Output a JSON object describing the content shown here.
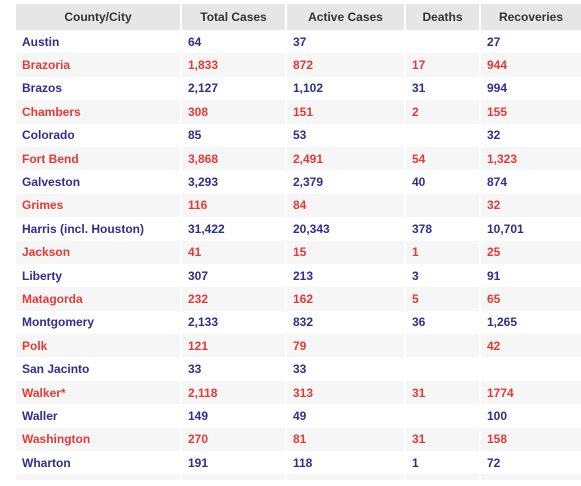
{
  "table": {
    "headers": [
      "County/City",
      "Total Cases",
      "Active Cases",
      "Deaths",
      "Recoveries"
    ],
    "rows": [
      [
        "Austin",
        "64",
        "37",
        "",
        "27"
      ],
      [
        "Brazoria",
        "1,833",
        "872",
        "17",
        "944"
      ],
      [
        "Brazos",
        "2,127",
        "1,102",
        "31",
        "994"
      ],
      [
        "Chambers",
        "308",
        "151",
        "2",
        "155"
      ],
      [
        "Colorado",
        "85",
        "53",
        "",
        "32"
      ],
      [
        "Fort Bend",
        "3,868",
        "2,491",
        "54",
        "1,323"
      ],
      [
        "Galveston",
        "3,293",
        "2,379",
        "40",
        "874"
      ],
      [
        "Grimes",
        "116",
        "84",
        "",
        "32"
      ],
      [
        "Harris (incl. Houston)",
        "31,422",
        "20,343",
        "378",
        "10,701"
      ],
      [
        "Jackson",
        "41",
        "15",
        "1",
        "25"
      ],
      [
        "Liberty",
        "307",
        "213",
        "3",
        "91"
      ],
      [
        "Matagorda",
        "232",
        "162",
        "5",
        "65"
      ],
      [
        "Montgomery",
        "2,133",
        "832",
        "36",
        "1,265"
      ],
      [
        "Polk",
        "121",
        "79",
        "",
        "42"
      ],
      [
        "San Jacinto",
        "33",
        "33",
        "",
        ""
      ],
      [
        "Walker*",
        "2,118",
        "313",
        "31",
        "1774"
      ],
      [
        "Waller",
        "149",
        "49",
        "",
        "100"
      ],
      [
        "Washington",
        "270",
        "81",
        "31",
        "158"
      ],
      [
        "Wharton",
        "191",
        "118",
        "1",
        "72"
      ]
    ]
  },
  "colors": {
    "odd_row_text": "#2e2e8f",
    "even_row_text": "#e53935",
    "header_bg": "#e6e6e6",
    "stripe_bg": "#f6f6f6"
  }
}
